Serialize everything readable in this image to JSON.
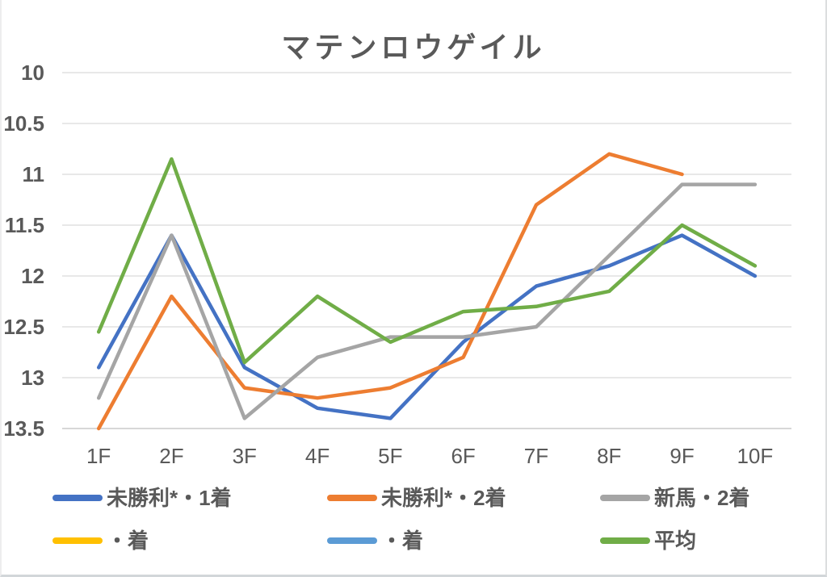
{
  "chart_data": {
    "type": "line",
    "title": "マテンロウゲイル",
    "title_color": "#595959",
    "categories": [
      "1F",
      "2F",
      "3F",
      "4F",
      "5F",
      "6F",
      "7F",
      "8F",
      "9F",
      "10F"
    ],
    "series": [
      {
        "name": "未勝利*・1着",
        "color": "#4472C4",
        "values": [
          12.9,
          11.6,
          12.9,
          13.3,
          13.4,
          12.65,
          12.1,
          11.9,
          11.6,
          12.0
        ]
      },
      {
        "name": "未勝利*・2着",
        "color": "#ED7D31",
        "values": [
          13.5,
          12.2,
          13.1,
          13.2,
          13.1,
          12.8,
          11.3,
          10.8,
          11.0,
          null
        ]
      },
      {
        "name": "新馬・2着",
        "color": "#A5A5A5",
        "values": [
          13.2,
          11.6,
          13.4,
          12.8,
          12.6,
          12.6,
          12.5,
          11.8,
          11.1,
          11.1
        ]
      },
      {
        "name": "・着",
        "color": "#FFC000",
        "values": [
          null,
          null,
          null,
          null,
          null,
          null,
          null,
          null,
          null,
          null
        ]
      },
      {
        "name": "・着",
        "color": "#5B9BD5",
        "values": [
          null,
          null,
          null,
          null,
          null,
          null,
          null,
          null,
          null,
          null
        ]
      },
      {
        "name": "平均",
        "color": "#70AD47",
        "values": [
          12.55,
          10.85,
          12.85,
          12.2,
          12.65,
          12.35,
          12.3,
          12.15,
          11.5,
          11.9
        ]
      }
    ],
    "y_axis": {
      "ticks": [
        "10",
        "10.5",
        "11",
        "11.5",
        "12",
        "12.5",
        "13",
        "13.5"
      ],
      "min": 10,
      "max": 13.5,
      "reversed": true,
      "label_color": "#595959"
    },
    "x_axis": {
      "label_color": "#595959"
    },
    "grid": {
      "on": true,
      "color": "#D9D9D9",
      "axis_line_color": "#BFBFBF"
    },
    "legend": {
      "position": "bottom",
      "rows": 2,
      "columns": 3
    },
    "line_width": 4.5
  }
}
